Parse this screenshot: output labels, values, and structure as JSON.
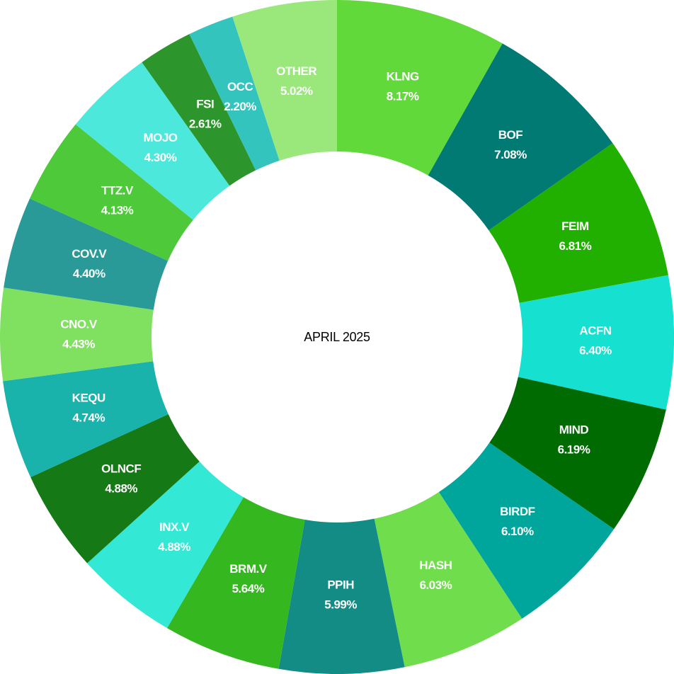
{
  "chart_data": {
    "type": "pie",
    "title": "APRIL 2025",
    "categories": [
      "KLNG",
      "BOF",
      "FEIM",
      "ACFN",
      "MIND",
      "BIRDF",
      "HASH",
      "PPIH",
      "BRM.V",
      "INX.V",
      "OLNCF",
      "KEQU",
      "CNO.V",
      "COV.V",
      "TTZ.V",
      "MOJO",
      "FSI",
      "OCC",
      "OTHER"
    ],
    "values": [
      8.17,
      7.08,
      6.81,
      6.4,
      6.19,
      6.1,
      6.03,
      5.99,
      5.64,
      4.88,
      4.88,
      4.74,
      4.43,
      4.4,
      4.13,
      4.3,
      2.61,
      2.2,
      5.02
    ],
    "value_labels": [
      "8.17%",
      "7.08%",
      "6.81%",
      "6.40%",
      "6.19%",
      "6.10%",
      "6.03%",
      "5.99%",
      "5.64%",
      "4.88%",
      "4.88%",
      "4.74%",
      "4.43%",
      "4.40%",
      "4.13%",
      "4.30%",
      "2.61%",
      "2.20%",
      "5.02%"
    ],
    "colors": [
      "#62d93a",
      "#007a72",
      "#22b000",
      "#16e0d0",
      "#006b00",
      "#00a69c",
      "#70dd4c",
      "#138c86",
      "#35b71f",
      "#33e8d5",
      "#157a15",
      "#1ab3ac",
      "#80e060",
      "#2a9a98",
      "#4dc93a",
      "#4de8dc",
      "#2c962c",
      "#34c4be",
      "#9ae87c"
    ]
  }
}
